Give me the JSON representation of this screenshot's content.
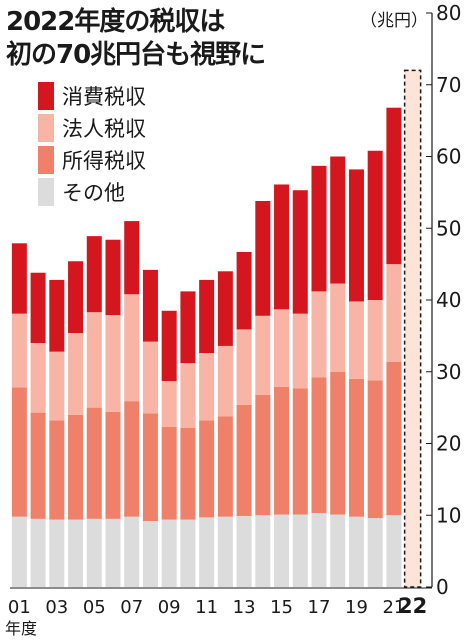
{
  "title": {
    "line1": "2022年度の税収は",
    "line2": "初の70兆円台も視野に"
  },
  "unit_label": "（兆円）",
  "colors": {
    "consumption_tax": "#d4161f",
    "corporate_tax": "#f8b4a4",
    "income_tax": "#ef806a",
    "other": "#dcdcdc",
    "forecast_fill": "#fde3d8",
    "forecast_border": "#1a1a1a"
  },
  "legend": [
    {
      "label": "消費税収",
      "color": "#d4161f"
    },
    {
      "label": "法人税収",
      "color": "#f8b4a4"
    },
    {
      "label": "所得税収",
      "color": "#ef806a"
    },
    {
      "label": "その他",
      "color": "#dcdcdc"
    }
  ],
  "chart_data": {
    "type": "bar",
    "stacked": true,
    "categories": [
      "01",
      "02",
      "03",
      "04",
      "05",
      "06",
      "07",
      "08",
      "09",
      "10",
      "11",
      "12",
      "13",
      "14",
      "15",
      "16",
      "17",
      "18",
      "19",
      "20",
      "21",
      "22"
    ],
    "x_tick_labels": [
      "01",
      "03",
      "05",
      "07",
      "09",
      "11",
      "13",
      "15",
      "17",
      "19",
      "21",
      "22"
    ],
    "xlabel": "年度",
    "ylim": [
      0,
      80
    ],
    "yticks": [
      0,
      10,
      20,
      30,
      40,
      50,
      60,
      70,
      80
    ],
    "y_axis_position": "right",
    "grid": false,
    "series": [
      {
        "name": "その他",
        "values": [
          9.8,
          9.5,
          9.4,
          9.4,
          9.5,
          9.5,
          9.8,
          9.2,
          9.4,
          9.4,
          9.7,
          9.8,
          9.9,
          10.0,
          10.1,
          10.1,
          10.3,
          10.1,
          9.8,
          9.6,
          10.0,
          null
        ]
      },
      {
        "name": "所得税収",
        "values": [
          18.0,
          14.8,
          13.8,
          14.6,
          15.5,
          14.9,
          16.1,
          15.0,
          12.9,
          12.8,
          13.5,
          14.0,
          15.5,
          16.8,
          17.8,
          17.6,
          18.9,
          19.9,
          19.2,
          19.2,
          21.4,
          null
        ]
      },
      {
        "name": "法人税収",
        "values": [
          10.3,
          9.7,
          9.6,
          11.4,
          13.3,
          13.5,
          14.9,
          10.0,
          6.4,
          9.0,
          9.4,
          9.8,
          10.5,
          11.0,
          10.8,
          10.4,
          12.0,
          12.3,
          10.8,
          11.2,
          13.6,
          null
        ]
      },
      {
        "name": "消費税収",
        "values": [
          9.8,
          9.8,
          10.0,
          10.0,
          10.6,
          10.5,
          10.2,
          10.0,
          9.8,
          10.0,
          10.2,
          10.4,
          10.8,
          16.0,
          17.4,
          17.2,
          17.5,
          17.7,
          18.4,
          20.8,
          21.8,
          null
        ]
      }
    ],
    "forecast": {
      "category": "22",
      "range": [
        0,
        72
      ],
      "style": "dashed-outline"
    }
  }
}
